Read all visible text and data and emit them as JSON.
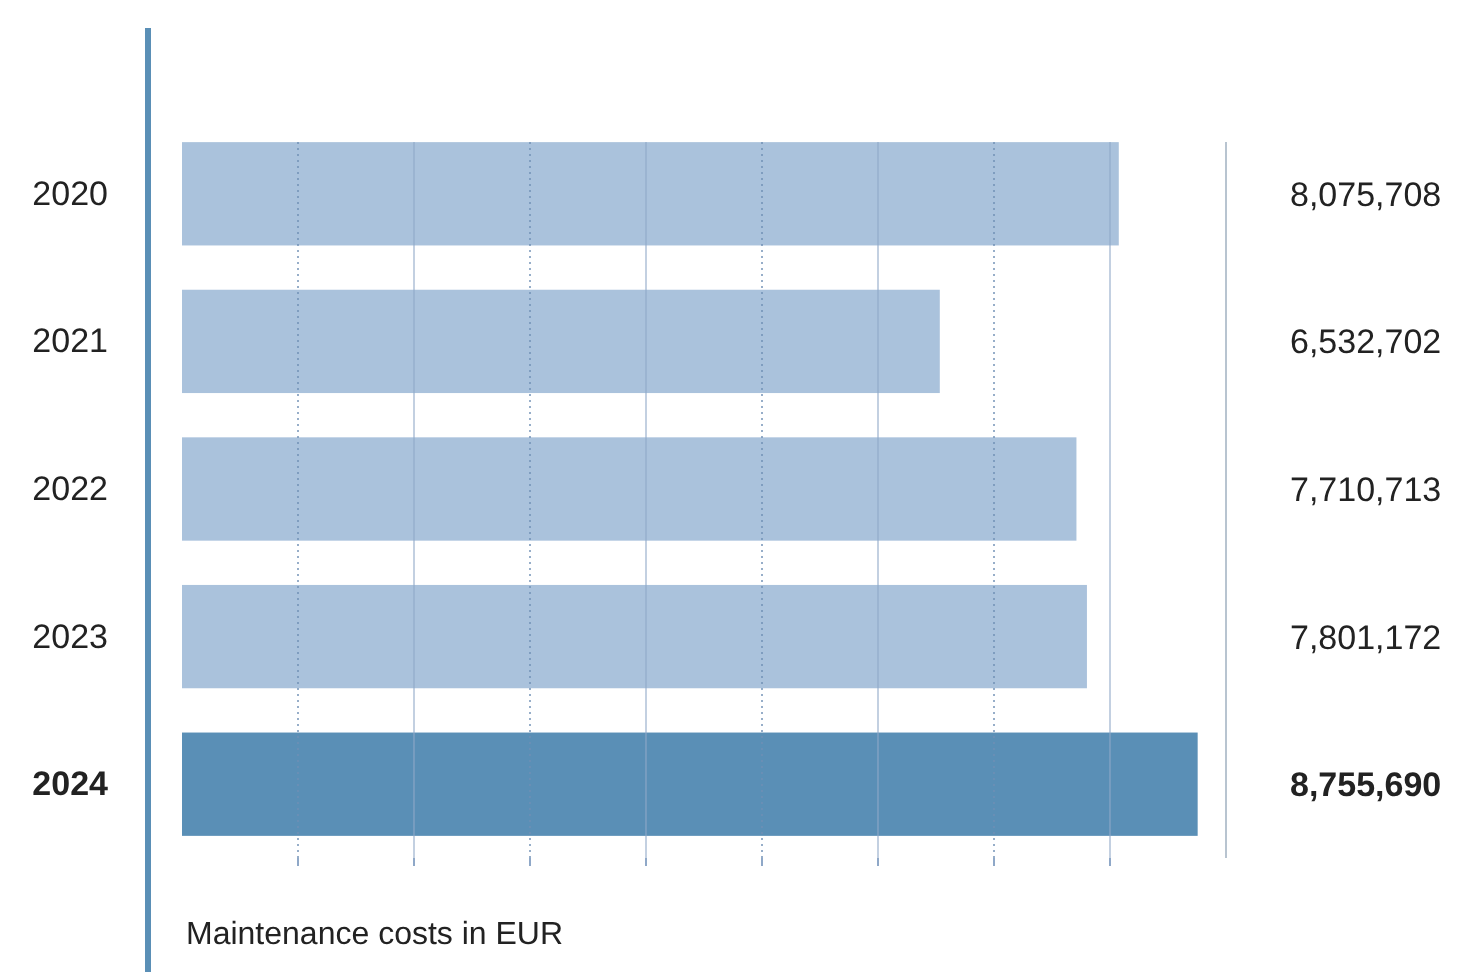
{
  "chart_data": {
    "type": "bar",
    "orientation": "horizontal",
    "categories": [
      "2020",
      "2021",
      "2022",
      "2023",
      "2024"
    ],
    "values": [
      8075708,
      6532702,
      7710713,
      7801172,
      8755690
    ],
    "colors": [
      "#aac2dc",
      "#aac2dc",
      "#aac2dc",
      "#aac2dc",
      "#5a8fb6"
    ],
    "value_labels": [
      "8,075,708",
      "6,532,702",
      "7,710,713",
      "7,801,172",
      "8,755,690"
    ],
    "xlim": [
      0,
      9000000
    ],
    "xticks": [
      {
        "value": 1000000,
        "label": null
      },
      {
        "value": 2000000,
        "label": null
      },
      {
        "value": 3000000,
        "label": null
      },
      {
        "value": 4000000,
        "label": null
      },
      {
        "value": 5000000,
        "label": null
      },
      {
        "value": 6000000,
        "label": null
      },
      {
        "value": 7000000,
        "label": null
      },
      {
        "value": 8000000,
        "label": null
      }
    ],
    "grid": "x",
    "tick_labels": "y",
    "annotations": [
      "Maintenance costs in EUR"
    ]
  }
}
